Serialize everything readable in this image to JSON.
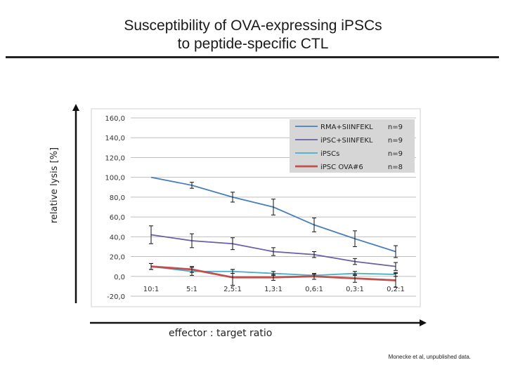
{
  "slide": {
    "title_line1": "Susceptibility of OVA-expressing iPSCs",
    "title_line2": "to peptide-specific CTL",
    "ylabel": "relative lysis [%]",
    "xlabel": "effector : target ratio",
    "credit": "Monecke et al, unpublished data."
  },
  "chart_data": {
    "type": "line",
    "categories": [
      "10:1",
      "5:1",
      "2,5:1",
      "1,3:1",
      "0,6:1",
      "0,3:1",
      "0,2:1"
    ],
    "y_tick_labels": [
      "-20,0",
      "0,0",
      "20,0",
      "40,0",
      "60,0",
      "80,0",
      "100,0",
      "120,0",
      "140,0",
      "160,0"
    ],
    "ylim": [
      -20,
      160
    ],
    "grid": true,
    "legend_position": "top-right",
    "series": [
      {
        "name": "RMA+SIINFEKL",
        "n": "n=9",
        "color": "#4a7ebb",
        "values": [
          100,
          92,
          80,
          70,
          52,
          38,
          25
        ],
        "errors": [
          0,
          3,
          5,
          8,
          7,
          8,
          6
        ]
      },
      {
        "name": "iPSC+SIINFEKL",
        "n": "n=9",
        "color": "#6a5fa8",
        "values": [
          42,
          36,
          33,
          25,
          22,
          15,
          10
        ],
        "errors": [
          9,
          7,
          6,
          4,
          3,
          3,
          4
        ]
      },
      {
        "name": "iPSCs",
        "n": "n=9",
        "color": "#4bacc6",
        "values": [
          10,
          5,
          5,
          3,
          1,
          3,
          2
        ],
        "errors": [
          3,
          4,
          2,
          2,
          1,
          2,
          2
        ]
      },
      {
        "name": "iPSC OVA#6",
        "n": "n=8",
        "color": "#c0504d",
        "values": [
          10,
          7,
          -1,
          -1,
          0,
          -2,
          -4
        ],
        "errors": [
          3,
          3,
          8,
          3,
          3,
          4,
          7
        ]
      }
    ]
  }
}
